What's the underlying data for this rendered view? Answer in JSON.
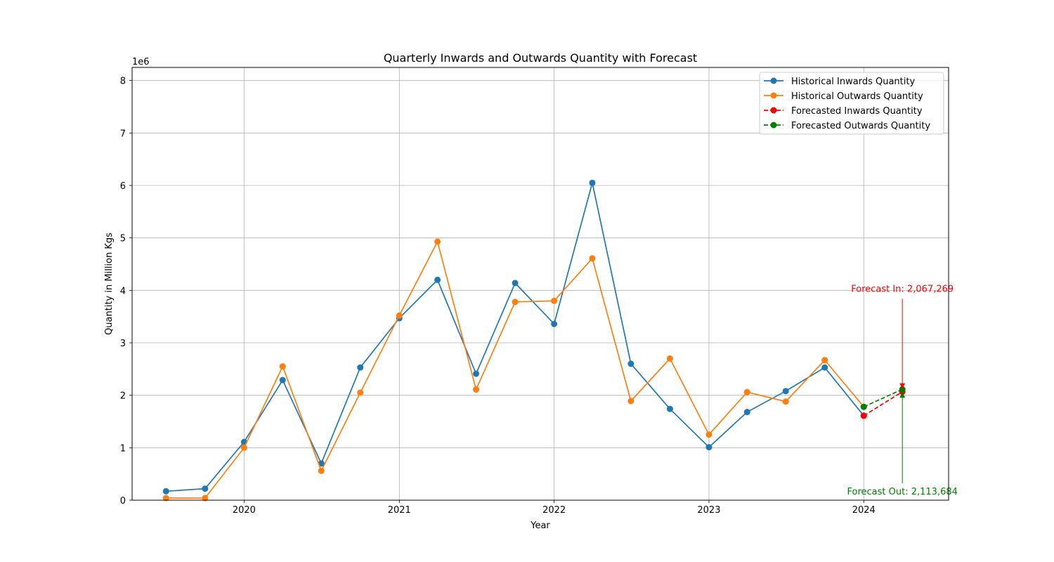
{
  "chart_data": {
    "type": "line",
    "title": "Quarterly Inwards and Outwards Quantity with Forecast",
    "xlabel": "Year",
    "ylabel": "Quantity in Million Kgs",
    "offset_label": "1e6",
    "x_ticks": [
      "2020",
      "2021",
      "2022",
      "2023",
      "2024"
    ],
    "y_ticks": [
      "0",
      "1",
      "2",
      "3",
      "4",
      "5",
      "6",
      "7",
      "8"
    ],
    "xlim": [
      "2019-04-12",
      "2024-07-19"
    ],
    "ylim": [
      0,
      8250000
    ],
    "grid": true,
    "legend_position": "top-right",
    "x": [
      "2019-07-01",
      "2019-10-01",
      "2020-01-01",
      "2020-04-01",
      "2020-07-01",
      "2020-10-01",
      "2021-01-01",
      "2021-04-01",
      "2021-07-01",
      "2021-10-01",
      "2022-01-01",
      "2022-04-01",
      "2022-07-01",
      "2022-10-01",
      "2023-01-01",
      "2023-04-01",
      "2023-07-01",
      "2023-10-01",
      "2024-01-01"
    ],
    "series": [
      {
        "name": "Historical Inwards Quantity",
        "color": "#1f77b4",
        "style": "solid",
        "values": [
          170000,
          220000,
          1110000,
          2290000,
          700000,
          2530000,
          3470000,
          4200000,
          2410000,
          4140000,
          3360000,
          6050000,
          2600000,
          1740000,
          1010000,
          1680000,
          2080000,
          2530000,
          1610000
        ]
      },
      {
        "name": "Historical Outwards Quantity",
        "color": "#ff7f0e",
        "style": "solid",
        "values": [
          40000,
          40000,
          1000000,
          2550000,
          560000,
          2050000,
          3520000,
          4930000,
          2110000,
          3780000,
          3800000,
          4610000,
          1890000,
          2700000,
          1250000,
          2060000,
          1880000,
          2670000,
          1780000
        ]
      },
      {
        "name": "Forecasted Inwards Quantity",
        "color": "#ff0000",
        "style": "dashed",
        "x": [
          "2024-01-01",
          "2024-04-01"
        ],
        "values": [
          1610000,
          2067269
        ]
      },
      {
        "name": "Forecasted Outwards Quantity",
        "color": "#008000",
        "style": "dashed",
        "x": [
          "2024-01-01",
          "2024-04-01"
        ],
        "values": [
          1780000,
          2113684
        ]
      }
    ],
    "annotations": [
      {
        "text": "Forecast In: 2,067,269",
        "color": "#ff0000",
        "x": "2024-04-01",
        "y": 2067269,
        "text_y": 4000000
      },
      {
        "text": "Forecast Out: 2,113,684",
        "color": "#008000",
        "x": "2024-04-01",
        "y": 2113684,
        "text_y": 0
      }
    ]
  }
}
